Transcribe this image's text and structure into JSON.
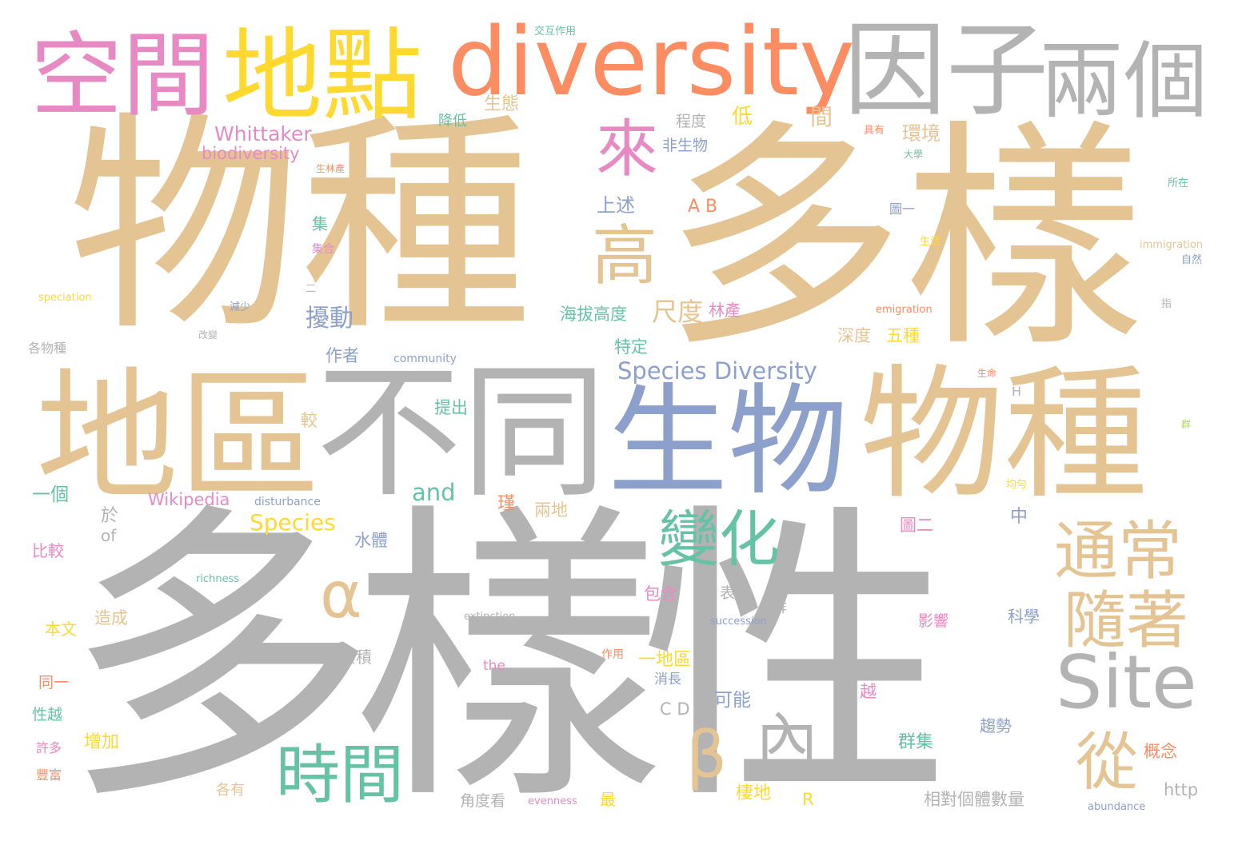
{
  "palette": [
    "#e5c494",
    "#b3b3b3",
    "#e78ac3",
    "#ffd92f",
    "#fc8d62",
    "#8da0cb",
    "#66c2a5",
    "#a6d854"
  ],
  "words": [
    "物種",
    "多樣",
    "多樣性",
    "地區",
    "不同",
    "生物",
    "物種",
    "空間",
    "地點",
    "diversity",
    "因子",
    "兩個",
    "Site",
    "變化",
    "通常",
    "隨著",
    "時間",
    "高",
    "來",
    "α",
    "β",
    "從",
    "內",
    "Species Diversity",
    "Whittaker",
    "biodiversity",
    "擾動",
    "尺度",
    "海拔高度",
    "Species",
    "and",
    "Wikipedia",
    "環境",
    "間",
    "低",
    "生態",
    "上述",
    "A B",
    "程度",
    "非生物",
    "林產",
    "深度",
    "五種",
    "特定",
    "作者",
    "提出",
    "較",
    "一個",
    "於",
    "of",
    "中",
    "圖二",
    "兩地",
    "水體",
    "包含",
    "表示",
    "一群",
    "造成",
    "本文",
    "比較",
    "同一",
    "性越",
    "許多",
    "豐富",
    "增加",
    "一地區",
    "消長",
    "可能",
    "越",
    "群集",
    "棲地",
    "相對個體數量",
    "角度看",
    "概念",
    "趨勢",
    "影響",
    "科學",
    "R",
    "http",
    "C D",
    "累積",
    "各有",
    "最",
    "集",
    "集合",
    "作用",
    "降低",
    "交互作用",
    "生林產",
    "community",
    "disturbance",
    "richness",
    "extinction",
    "succession",
    "evenness",
    "abundance",
    "speciation",
    "immigration",
    "emigration",
    "H",
    "the",
    "各物種",
    "改變",
    "二",
    "減少",
    "生命",
    "生活",
    "圖一",
    "具有",
    "大學",
    "自然",
    "指",
    "群",
    "所在",
    "均勻",
    "瑾"
  ]
}
